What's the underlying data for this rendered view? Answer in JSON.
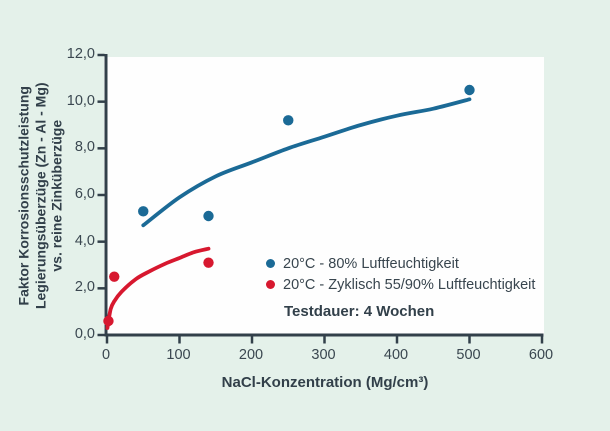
{
  "chart_data": {
    "type": "scatter",
    "title": "",
    "xlabel": "NaCl-Konzentration (Mg/cm³)",
    "ylabel_lines": [
      "Faktor Korrosionsschutzleistung",
      "Legierungsüberzüge (Zn - Al - Mg)",
      "vs. reine Zinküberzüge"
    ],
    "xlim": [
      0,
      600
    ],
    "ylim": [
      0,
      12
    ],
    "x_ticks": [
      0,
      100,
      200,
      300,
      400,
      500,
      600
    ],
    "x_tick_labels": [
      "0",
      "100",
      "200",
      "300",
      "400",
      "500",
      "600"
    ],
    "y_ticks": [
      0,
      2,
      4,
      6,
      8,
      10,
      12
    ],
    "y_tick_labels": [
      "0,0",
      "2,0",
      "4,0",
      "6,0",
      "8,0",
      "10,0",
      "12,0"
    ],
    "grid": false,
    "legend_position": "inside-lower-right",
    "series": [
      {
        "name": "20°C - 80% Luftfeuchtigkeit",
        "color": "#1b6a96",
        "points": [
          [
            50,
            5.3
          ],
          [
            140,
            5.1
          ],
          [
            250,
            9.2
          ],
          [
            500,
            10.5
          ]
        ],
        "trend": [
          [
            50,
            4.7
          ],
          [
            100,
            5.9
          ],
          [
            150,
            6.8
          ],
          [
            200,
            7.4
          ],
          [
            250,
            8.0
          ],
          [
            300,
            8.5
          ],
          [
            350,
            9.0
          ],
          [
            400,
            9.4
          ],
          [
            450,
            9.7
          ],
          [
            500,
            10.1
          ]
        ]
      },
      {
        "name": "20°C - Zyklisch 55/90% Luftfeuchtigkeit",
        "color": "#d7182f",
        "points": [
          [
            2,
            0.6
          ],
          [
            10,
            2.5
          ],
          [
            140,
            3.1
          ]
        ],
        "trend": [
          [
            0.5,
            0.3
          ],
          [
            5,
            1.1
          ],
          [
            10,
            1.45
          ],
          [
            20,
            1.85
          ],
          [
            40,
            2.4
          ],
          [
            60,
            2.75
          ],
          [
            80,
            3.05
          ],
          [
            100,
            3.3
          ],
          [
            120,
            3.55
          ],
          [
            140,
            3.7
          ]
        ]
      }
    ],
    "annotation": "Testdauer: 4 Wochen"
  },
  "colors": {
    "background": "#e4f1ea",
    "plot_background": "#fefefe",
    "axis": "#32404a",
    "blue_series": "#1b6a96",
    "red_series": "#d7182f"
  }
}
